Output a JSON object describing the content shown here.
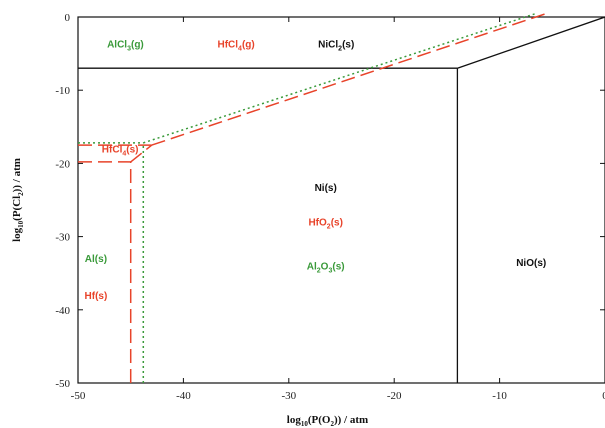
{
  "chart_data": {
    "type": "line",
    "title": "",
    "xlabel": "log10(P(O2)) / atm",
    "ylabel": "log10(P(Cl2)) / atm",
    "xlim": [
      -50,
      0
    ],
    "ylim": [
      -50,
      0
    ],
    "xticks": [
      -50,
      -40,
      -30,
      -20,
      -10,
      0
    ],
    "yticks": [
      0,
      -10,
      -20,
      -30,
      -40,
      -50
    ],
    "grid": false,
    "colors": {
      "Ni": "#111111",
      "Hf": "#e8432a",
      "Al": "#3a9a3a"
    },
    "series": [
      {
        "name": "Ni",
        "style": "solid",
        "color": "#111111",
        "segments": [
          [
            [
              -50,
              -7
            ],
            [
              -14,
              -7
            ]
          ],
          [
            [
              -14,
              -50
            ],
            [
              -14,
              -7
            ]
          ],
          [
            [
              -14,
              -7
            ],
            [
              0,
              0
            ]
          ]
        ]
      },
      {
        "name": "Hf",
        "style": "longdash",
        "color": "#e8432a",
        "segments": [
          [
            [
              -50,
              -17.5
            ],
            [
              -43,
              -17.5
            ]
          ],
          [
            [
              -50,
              -19.8
            ],
            [
              -45,
              -19.8
            ]
          ],
          [
            [
              -45,
              -50
            ],
            [
              -45,
              -19.8
            ]
          ],
          [
            [
              -45,
              -19.8
            ],
            [
              -43,
              -17.5
            ]
          ],
          [
            [
              -43,
              -17.5
            ],
            [
              -5.5,
              0.5
            ]
          ]
        ]
      },
      {
        "name": "Al",
        "style": "dotted",
        "color": "#3a9a3a",
        "segments": [
          [
            [
              -50,
              -17.2
            ],
            [
              -43.8,
              -17.2
            ]
          ],
          [
            [
              -43.8,
              -50
            ],
            [
              -43.8,
              -17.2
            ]
          ],
          [
            [
              -43.8,
              -17.2
            ],
            [
              -6.5,
              0.5
            ]
          ]
        ]
      }
    ],
    "annotations": [
      {
        "text": "AlCl3(g)",
        "parts": [
          "AlCl",
          "3",
          "(g)"
        ],
        "x": -45.5,
        "y": -4.2,
        "color": "#3a9a3a"
      },
      {
        "text": "HfCl4(g)",
        "parts": [
          "HfCl",
          "4",
          "(g)"
        ],
        "x": -35,
        "y": -4.2,
        "color": "#e8432a"
      },
      {
        "text": "NiCl2(s)",
        "parts": [
          "NiCl",
          "2",
          "(s)"
        ],
        "x": -25.5,
        "y": -4.2,
        "color": "#111111"
      },
      {
        "text": "HfCl4(s)",
        "parts": [
          "HfCl",
          "4",
          "(s)"
        ],
        "x": -46,
        "y": -18.5,
        "color": "#e8432a"
      },
      {
        "text": "Ni(s)",
        "parts": [
          "Ni",
          "",
          "(s)"
        ],
        "x": -26.5,
        "y": -23.8,
        "color": "#111111"
      },
      {
        "text": "HfO2(s)",
        "parts": [
          "HfO",
          "2",
          "(s)"
        ],
        "x": -26.5,
        "y": -28.5,
        "color": "#e8432a"
      },
      {
        "text": "Al2O3(s)",
        "parts": [
          "Al",
          "2",
          "O",
          "3",
          "(s)"
        ],
        "x": -26.5,
        "y": -34.5,
        "color": "#3a9a3a"
      },
      {
        "text": "NiO(s)",
        "parts": [
          "NiO",
          "",
          "(s)"
        ],
        "x": -7,
        "y": -34,
        "color": "#111111"
      },
      {
        "text": "Al(s)",
        "parts": [
          "Al",
          "",
          "(s)"
        ],
        "x": -48.3,
        "y": -33.5,
        "color": "#3a9a3a"
      },
      {
        "text": "Hf(s)",
        "parts": [
          "Hf",
          "",
          "(s)"
        ],
        "x": -48.3,
        "y": -38.5,
        "color": "#e8432a"
      }
    ]
  }
}
